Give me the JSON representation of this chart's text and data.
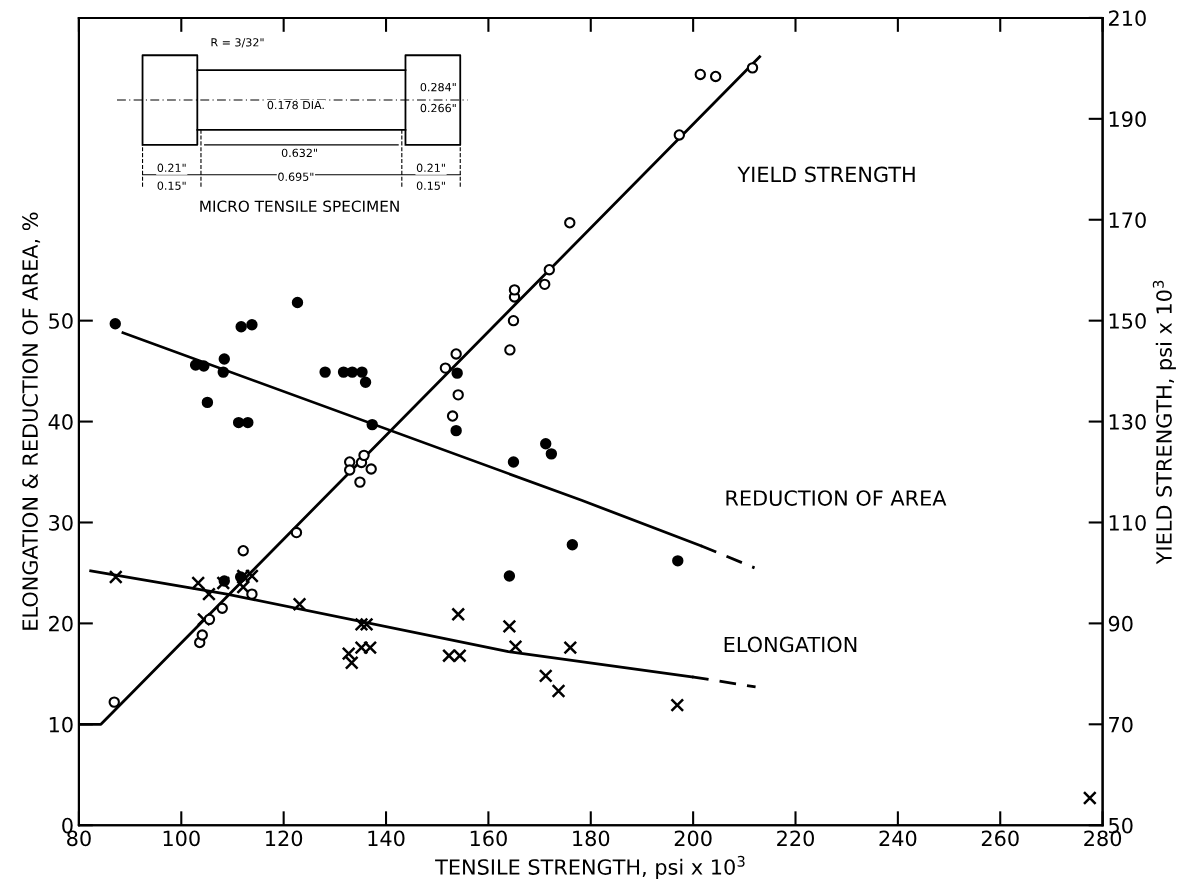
{
  "chart_data": {
    "type": "scatter",
    "xlabel": "TENSILE STRENGTH, psi x 10$^{3}$",
    "ylabel": "ELONGATION & REDUCTION OF AREA, %",
    "y2label": "YIELD STRENGTH, psi x 10$^{3}$",
    "xlim": [
      80,
      280
    ],
    "xticks": [
      80,
      100,
      120,
      140,
      160,
      180,
      200,
      220,
      240,
      260,
      280
    ],
    "ylim": [
      0,
      80
    ],
    "yticks": [
      0,
      10,
      20,
      30,
      40,
      50
    ],
    "y2lim": [
      50,
      210
    ],
    "y2ticks": [
      50,
      70,
      90,
      110,
      130,
      150,
      170,
      190,
      210
    ],
    "grid": false,
    "series": [
      {
        "axis": "y2",
        "marker": "circle",
        "color": "#000000",
        "x": [
          86.9,
          103.6,
          104.1,
          105.5,
          108,
          113.8,
          112.1,
          122.5,
          132.9,
          132.9,
          134.9,
          135.2,
          135.7,
          137.1,
          151.6,
          153.7,
          154.1,
          153,
          164.2,
          164.9,
          165.1,
          165.1,
          171,
          171.9,
          175.9,
          197.3,
          201.4,
          204.4,
          211.6
        ],
        "values": [
          74.4,
          86.2,
          87.7,
          90.8,
          93,
          95.8,
          104.4,
          108,
          122,
          120.4,
          118,
          121.9,
          123.3,
          120.6,
          140.6,
          143.4,
          135.3,
          131.1,
          144.2,
          150,
          154.7,
          156.1,
          157.2,
          160.1,
          169.4,
          186.8,
          198.8,
          198.4,
          200.1
        ]
      },
      {
        "marker": "circle",
        "color": "#000000",
        "x": [
          87.1,
          102.8,
          104.4,
          108.4,
          108.2,
          105.1,
          111.7,
          113.8,
          111.2,
          113,
          122.7,
          128.1,
          131.7,
          133.4,
          135.3,
          136,
          137.3,
          153.9,
          153.7,
          164.9,
          171.2,
          172.3,
          176.4,
          164.1,
          108.4,
          111.6,
          197
        ],
        "values": [
          49.7,
          45.6,
          45.5,
          46.2,
          44.9,
          41.9,
          49.4,
          49.6,
          39.9,
          39.9,
          51.8,
          44.9,
          44.9,
          44.9,
          44.9,
          43.9,
          39.7,
          44.8,
          39.1,
          36,
          37.8,
          36.8,
          27.8,
          24.7,
          24.2,
          24.6,
          26.2
        ]
      },
      {
        "marker": "cross",
        "color": "#000000",
        "x": [
          87.2,
          103.3,
          105.4,
          104.4,
          108.2,
          112.1,
          113.8,
          112.1,
          123.1,
          135.2,
          136.2,
          135.2,
          136.9,
          132.7,
          133.3,
          152.3,
          154.4,
          154.1,
          164.1,
          165.3,
          171.2,
          173.7,
          176,
          196.9,
          277.5
        ],
        "values": [
          24.6,
          24,
          22.9,
          20.4,
          24,
          24.7,
          24.7,
          23.6,
          21.9,
          19.9,
          19.9,
          17.6,
          17.6,
          17,
          16.1,
          16.8,
          16.8,
          20.9,
          19.7,
          17.7,
          14.8,
          13.3,
          17.6,
          11.9,
          2.7
        ]
      },
      {
        "type": "line",
        "name": "YIELD STRENGTH",
        "axis": "y2",
        "line_style": "solid",
        "color": "#000000",
        "x": [
          80,
          84.3,
          213
        ],
        "values": [
          70,
          70,
          202.3
        ]
      },
      {
        "type": "line",
        "name": "REDUCTION OF AREA",
        "line_style": "solid",
        "color": "#000000",
        "x": [
          88.6,
          178.2,
          201.5
        ],
        "values": [
          48.8,
          32.2,
          27.7
        ]
      },
      {
        "type": "line",
        "line_style": "dashed",
        "color": "#000000",
        "x": [
          201.5,
          212
        ],
        "values": [
          27.7,
          25.5
        ]
      },
      {
        "type": "line",
        "name": "ELONGATION",
        "line_style": "solid",
        "color": "#000000",
        "x": [
          82.3,
          108.9,
          163.9,
          199.8
        ],
        "values": [
          25.2,
          22.9,
          17.2,
          14.7
        ]
      },
      {
        "type": "line",
        "line_style": "dashed",
        "color": "#000000",
        "x": [
          199.8,
          212.2
        ],
        "values": [
          14.7,
          13.7
        ]
      }
    ],
    "annotations": [
      "R = 3/32\"",
      "0.178 DIA.",
      "0.284\"",
      "0.266\"",
      "0.632\"",
      "0.21\"",
      "0.15\"",
      "0.695\"",
      "0.21\"",
      "0.15\"",
      "MICRO TENSILE SPECIMEN"
    ]
  }
}
